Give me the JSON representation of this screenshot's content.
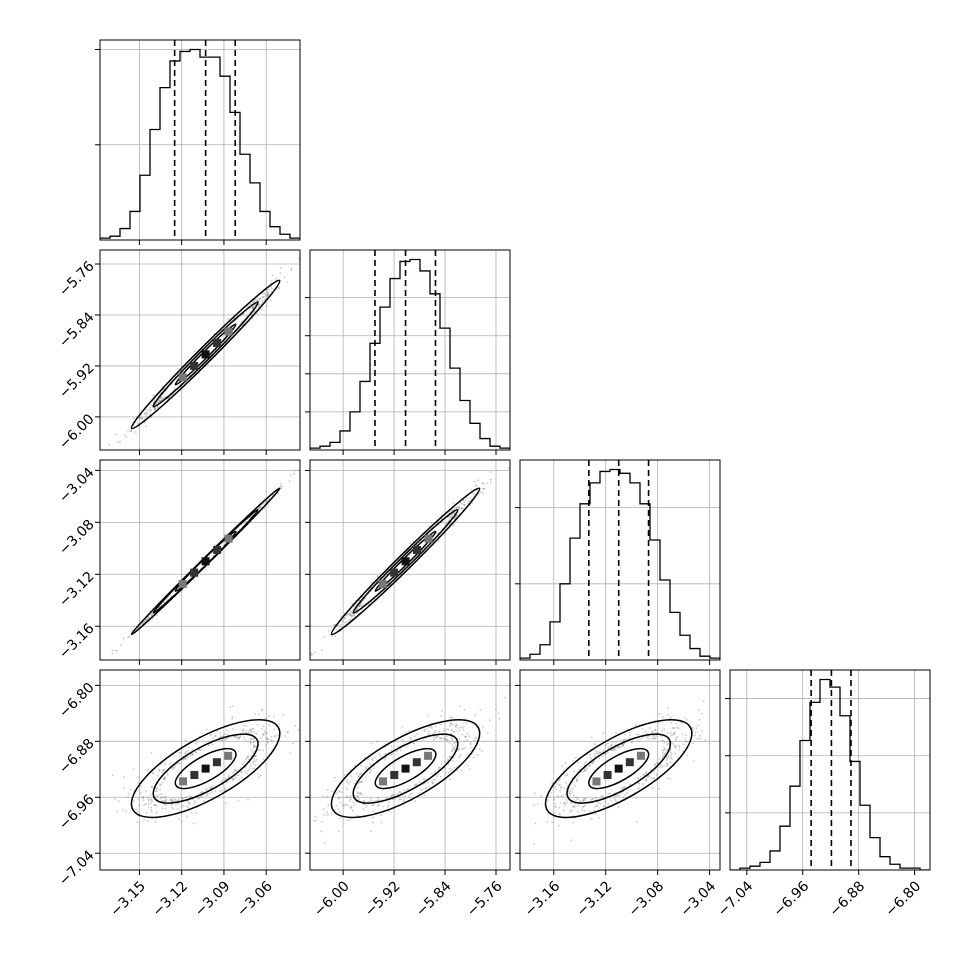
{
  "chart_data": {
    "type": "corner",
    "grid": true,
    "params": [
      {
        "range": [
          -3.178,
          -3.036
        ],
        "ticks": [
          -3.15,
          -3.12,
          -3.09,
          -3.06
        ],
        "tick_labels": [
          "−3.15",
          "−3.12",
          "−3.09",
          "−3.06"
        ],
        "quantiles": [
          -3.125,
          -3.103,
          -3.082
        ],
        "hist_max": 1.0,
        "hist_y_ticks": [
          0.5,
          1.0
        ],
        "hist": [
          0.01,
          0.02,
          0.06,
          0.15,
          0.34,
          0.58,
          0.8,
          0.94,
          0.99,
          1.0,
          0.96,
          0.96,
          0.86,
          0.67,
          0.45,
          0.3,
          0.15,
          0.07,
          0.03,
          0.01
        ]
      },
      {
        "range": [
          -6.052,
          -5.738
        ],
        "ticks": [
          -6.0,
          -5.92,
          -5.84,
          -5.76
        ],
        "tick_labels": [
          "−6.00",
          "−5.92",
          "−5.84",
          "−5.76"
        ],
        "quantiles": [
          -5.95,
          -5.902,
          -5.855
        ],
        "hist_max": 1.0,
        "hist_y_ticks": [
          0.2,
          0.4,
          0.6,
          0.8
        ],
        "hist": [
          0.01,
          0.02,
          0.04,
          0.1,
          0.2,
          0.36,
          0.56,
          0.75,
          0.9,
          0.99,
          1.0,
          0.94,
          0.82,
          0.64,
          0.43,
          0.26,
          0.14,
          0.06,
          0.02,
          0.01
        ]
      },
      {
        "range": [
          -3.186,
          -3.032
        ],
        "ticks": [
          -3.16,
          -3.12,
          -3.08,
          -3.04
        ],
        "tick_labels": [
          "−3.16",
          "−3.12",
          "−3.08",
          "−3.04"
        ],
        "quantiles": [
          -3.133,
          -3.11,
          -3.087
        ],
        "hist_max": 1.0,
        "hist_y_ticks": [
          0.4,
          0.8
        ],
        "hist": [
          0.01,
          0.03,
          0.08,
          0.2,
          0.4,
          0.64,
          0.82,
          0.93,
          0.99,
          1.0,
          0.98,
          0.93,
          0.82,
          0.63,
          0.42,
          0.25,
          0.13,
          0.06,
          0.02,
          0.01
        ]
      },
      {
        "range": [
          -7.064,
          -6.778
        ],
        "ticks": [
          -7.04,
          -6.96,
          -6.88,
          -6.8
        ],
        "tick_labels": [
          "−7.04",
          "−6.96",
          "−6.88",
          "−6.80"
        ],
        "quantiles": [
          -6.948,
          -6.919,
          -6.891
        ],
        "hist_max": 1.0,
        "hist_y_ticks": [
          0.3,
          0.6,
          0.9
        ],
        "hist": [
          0.0,
          0.01,
          0.02,
          0.04,
          0.1,
          0.23,
          0.44,
          0.68,
          0.88,
          1.0,
          0.96,
          0.81,
          0.57,
          0.34,
          0.17,
          0.07,
          0.03,
          0.01,
          0.01,
          0.0
        ]
      }
    ],
    "pairs": [
      {
        "row": 1,
        "col": 0,
        "corr": 0.99
      },
      {
        "row": 2,
        "col": 0,
        "corr": 0.998
      },
      {
        "row": 2,
        "col": 1,
        "corr": 0.99
      },
      {
        "row": 3,
        "col": 0,
        "corr": 0.72
      },
      {
        "row": 3,
        "col": 1,
        "corr": 0.72
      },
      {
        "row": 3,
        "col": 2,
        "corr": 0.72
      }
    ]
  }
}
